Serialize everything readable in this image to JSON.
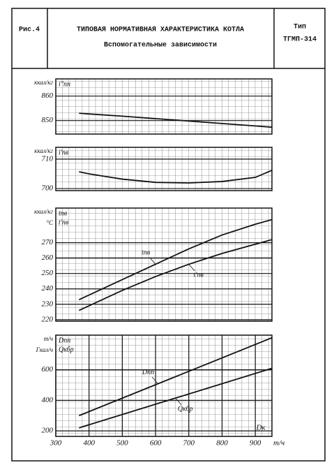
{
  "header": {
    "figure": "Рис.4",
    "title": "ТИПОВАЯ НОРМАТИВНАЯ ХАРАКТЕРИСТИКА КОТЛА",
    "subtitle": "Вспомогательные зависимости",
    "type_label": "Тип",
    "type_value": "ТГМП-314"
  },
  "chart_data": [
    {
      "type": "line",
      "units": [
        "ккал/кг"
      ],
      "y_labels": [
        "i''пп"
      ],
      "xlim": [
        300,
        950
      ],
      "ylim": [
        844.5,
        867
      ],
      "yticks": [
        850,
        860
      ],
      "series": [
        {
          "color": "#111111",
          "x": [
            370,
            400,
            500,
            600,
            700,
            800,
            900,
            950
          ],
          "values": [
            853,
            852.7,
            851.8,
            850.8,
            849.8,
            848.8,
            847.8,
            847.3
          ]
        }
      ]
    },
    {
      "type": "line",
      "units": [
        "ккал/кг"
      ],
      "y_labels": [
        "i'пв"
      ],
      "xlim": [
        300,
        950
      ],
      "ylim": [
        699.3,
        714
      ],
      "yticks": [
        700,
        710
      ],
      "series": [
        {
          "color": "#111111",
          "x": [
            370,
            400,
            500,
            600,
            700,
            800,
            900,
            950
          ],
          "values": [
            705.7,
            705,
            703.2,
            702.1,
            701.9,
            702.4,
            703.8,
            706.2
          ]
        }
      ]
    },
    {
      "type": "line",
      "units": [
        "ккал/кг",
        "°C"
      ],
      "y_labels": [
        "tпв",
        "t'пв"
      ],
      "xlim": [
        300,
        950
      ],
      "ylim": [
        219,
        292.5
      ],
      "yticks": [
        220,
        230,
        240,
        250,
        260,
        270
      ],
      "series": [
        {
          "name": "tпв",
          "color": "#111111",
          "x": [
            370,
            400,
            500,
            600,
            700,
            800,
            900,
            950
          ],
          "values": [
            233,
            236,
            246,
            256,
            266,
            275,
            282,
            285
          ]
        },
        {
          "name": "t'пв",
          "color": "#111111",
          "x": [
            370,
            400,
            500,
            600,
            700,
            800,
            900,
            950
          ],
          "values": [
            226,
            229,
            239,
            248,
            256,
            263,
            269,
            272
          ]
        }
      ]
    },
    {
      "type": "line",
      "units": [
        "т/ч",
        "Гкал/ч"
      ],
      "y_labels": [
        "Dпп",
        "Qкбр"
      ],
      "xlim": [
        300,
        950
      ],
      "ylim": [
        164,
        827
      ],
      "yticks": [
        200,
        400,
        600
      ],
      "xticks": [
        300,
        400,
        500,
        600,
        700,
        800,
        900
      ],
      "x_label": "Dк",
      "x_unit": "т/ч",
      "series": [
        {
          "name": "Dпп",
          "color": "#111111",
          "x": [
            370,
            950
          ],
          "values": [
            300,
            810
          ]
        },
        {
          "name": "Qкбр",
          "color": "#111111",
          "x": [
            370,
            950
          ],
          "values": [
            220,
            610
          ]
        }
      ]
    }
  ]
}
